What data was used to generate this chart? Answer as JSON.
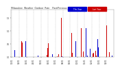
{
  "title": "Milwaukee  Weather  Outdoor  Rain    Past/Previous  Year",
  "background_color": "#ffffff",
  "plot_bg_color": "#ffffff",
  "grid_color": "#aaaaaa",
  "text_color": "#333333",
  "bar_color_current": "#0000cc",
  "bar_color_previous": "#cc0000",
  "ylim": [
    0,
    1.8
  ],
  "n_bars": 140,
  "legend_current": "This Year",
  "legend_previous": "Last Year",
  "legend_bg_current": "#0000cc",
  "legend_bg_previous": "#cc0000"
}
